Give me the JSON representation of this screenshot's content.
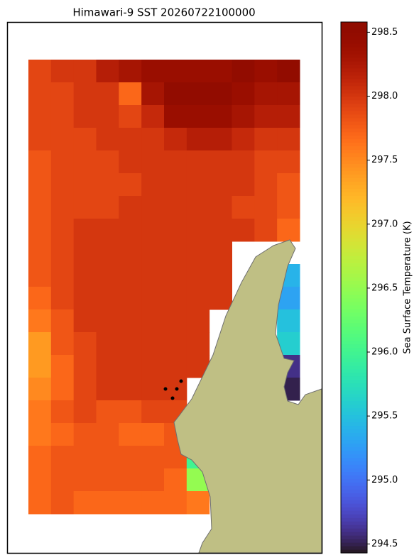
{
  "chart_data": {
    "type": "heatmap",
    "title": "Himawari-9 SST 20260722100000",
    "colorbar_label": "Sea Surface Temperature (K)",
    "colormap": "turbo",
    "vlim": [
      294.43,
      298.58
    ],
    "vticks": [
      294.5,
      {
        "value": 295,
        "label": "295.0"
      },
      295.5,
      {
        "value": 296,
        "label": "296.0"
      },
      296.5,
      {
        "value": 297,
        "label": "297.0"
      },
      297.5,
      {
        "value": 298,
        "label": "298.0"
      },
      298.5
    ],
    "values": [
      [
        297.9,
        298.0,
        298.0,
        298.2,
        298.3,
        298.4,
        298.4,
        298.4,
        298.4,
        298.5,
        298.4,
        298.5
      ],
      [
        297.9,
        297.9,
        298.0,
        298.0,
        297.7,
        298.3,
        298.5,
        298.5,
        298.5,
        298.4,
        298.3,
        298.3
      ],
      [
        297.9,
        297.9,
        298.0,
        298.0,
        297.9,
        298.1,
        298.4,
        298.4,
        298.4,
        298.3,
        298.2,
        298.2
      ],
      [
        297.9,
        297.9,
        297.9,
        298.0,
        298.0,
        298.0,
        298.1,
        298.2,
        298.2,
        298.1,
        298.0,
        298.0
      ],
      [
        297.8,
        297.9,
        297.9,
        297.9,
        298.0,
        298.0,
        298.0,
        298.0,
        298.0,
        298.0,
        297.9,
        297.9
      ],
      [
        297.8,
        297.9,
        297.9,
        297.9,
        297.9,
        298.0,
        298.0,
        298.0,
        298.0,
        298.0,
        297.9,
        297.8
      ],
      [
        297.8,
        297.9,
        297.9,
        297.9,
        298.0,
        298.0,
        298.0,
        298.0,
        298.0,
        297.9,
        297.9,
        297.8
      ],
      [
        297.8,
        297.9,
        298.0,
        298.0,
        298.0,
        298.0,
        298.0,
        298.0,
        298.0,
        298.0,
        297.9,
        297.7
      ],
      [
        297.8,
        297.9,
        298.0,
        298.0,
        298.0,
        298.0,
        298.0,
        298.0,
        298.0,
        null,
        null,
        null
      ],
      [
        297.8,
        297.9,
        298.0,
        298.0,
        298.0,
        298.0,
        298.0,
        298.0,
        298.0,
        null,
        null,
        295.4
      ],
      [
        297.7,
        297.9,
        298.0,
        298.0,
        298.0,
        298.0,
        298.0,
        298.0,
        298.0,
        null,
        null,
        295.3
      ],
      [
        297.6,
        297.8,
        298.0,
        298.0,
        298.0,
        298.0,
        298.0,
        298.0,
        null,
        null,
        null,
        295.5
      ],
      [
        297.4,
        297.8,
        297.9,
        298.0,
        298.0,
        298.0,
        298.0,
        298.0,
        null,
        null,
        null,
        295.6
      ],
      [
        297.4,
        297.7,
        297.9,
        298.0,
        298.0,
        298.0,
        298.0,
        298.0,
        null,
        null,
        null,
        294.6
      ],
      [
        297.5,
        297.7,
        297.9,
        298.0,
        298.0,
        298.0,
        298.0,
        null,
        null,
        null,
        null,
        294.5
      ],
      [
        297.6,
        297.8,
        297.9,
        297.8,
        297.8,
        297.9,
        297.9,
        null,
        null,
        null,
        null,
        null
      ],
      [
        297.6,
        297.7,
        297.8,
        297.8,
        297.7,
        297.7,
        297.8,
        null,
        null,
        null,
        null,
        null
      ],
      [
        297.7,
        297.8,
        297.8,
        297.8,
        297.8,
        297.8,
        297.8,
        296.0,
        null,
        null,
        null,
        null
      ],
      [
        297.7,
        297.8,
        297.8,
        297.8,
        297.8,
        297.8,
        297.7,
        296.5,
        null,
        null,
        null,
        null
      ],
      [
        297.7,
        297.8,
        297.7,
        297.7,
        297.7,
        297.7,
        297.7,
        297.6,
        null,
        null,
        null,
        null
      ]
    ]
  }
}
